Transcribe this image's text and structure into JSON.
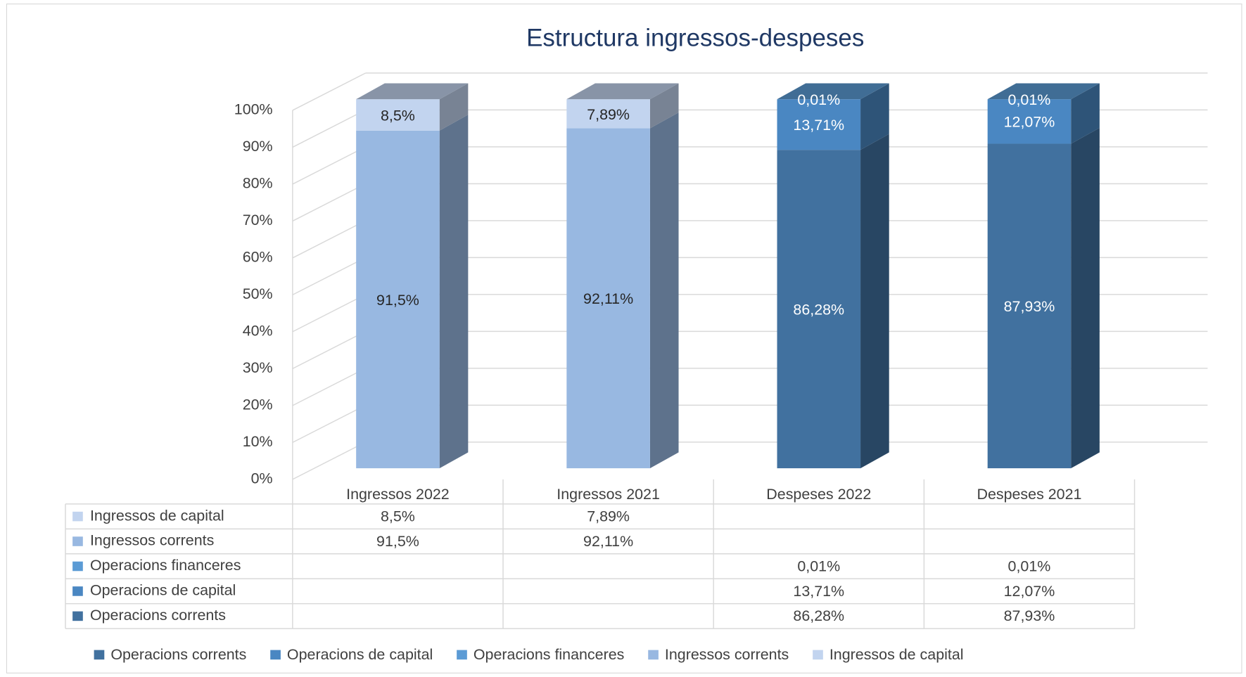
{
  "chart_data": {
    "type": "bar3d_stacked",
    "title": "Estructura ingressos-despeses",
    "categories": [
      "Ingressos 2022",
      "Ingressos 2021",
      "Despeses 2022",
      "Despeses 2021"
    ],
    "series": [
      {
        "name": "Operacions corrents",
        "color": "#41719f",
        "values": [
          null,
          null,
          86.28,
          87.93
        ],
        "value_labels": [
          null,
          null,
          "86,28%",
          "87,93%"
        ]
      },
      {
        "name": "Operacions de capital",
        "color": "#4a87c2",
        "values": [
          null,
          null,
          13.71,
          12.07
        ],
        "value_labels": [
          null,
          null,
          "13,71%",
          "12,07%"
        ]
      },
      {
        "name": "Operacions financeres",
        "color": "#5b9bd5",
        "values": [
          null,
          null,
          0.01,
          0.01
        ],
        "value_labels": [
          null,
          null,
          "0,01%",
          "0,01%"
        ]
      },
      {
        "name": "Ingressos corrents",
        "color": "#98b8e1",
        "values": [
          91.5,
          92.11,
          null,
          null
        ],
        "value_labels": [
          "91,5%",
          "92,11%",
          null,
          null
        ]
      },
      {
        "name": "Ingressos de capital",
        "color": "#c2d4ef",
        "values": [
          8.5,
          7.89,
          null,
          null
        ],
        "value_labels": [
          "8,5%",
          "7,89%",
          null,
          null
        ]
      }
    ],
    "ylim": [
      0,
      100
    ],
    "yticks": [
      {
        "value": 0,
        "label": "0%"
      },
      {
        "value": 10,
        "label": "10%"
      },
      {
        "value": 20,
        "label": "20%"
      },
      {
        "value": 30,
        "label": "30%"
      },
      {
        "value": 40,
        "label": "40%"
      },
      {
        "value": 50,
        "label": "50%"
      },
      {
        "value": 60,
        "label": "60%"
      },
      {
        "value": 70,
        "label": "70%"
      },
      {
        "value": 80,
        "label": "80%"
      },
      {
        "value": 90,
        "label": "90%"
      },
      {
        "value": 100,
        "label": "100%"
      }
    ],
    "grid": true,
    "data_table": true,
    "legend": "bottom"
  }
}
